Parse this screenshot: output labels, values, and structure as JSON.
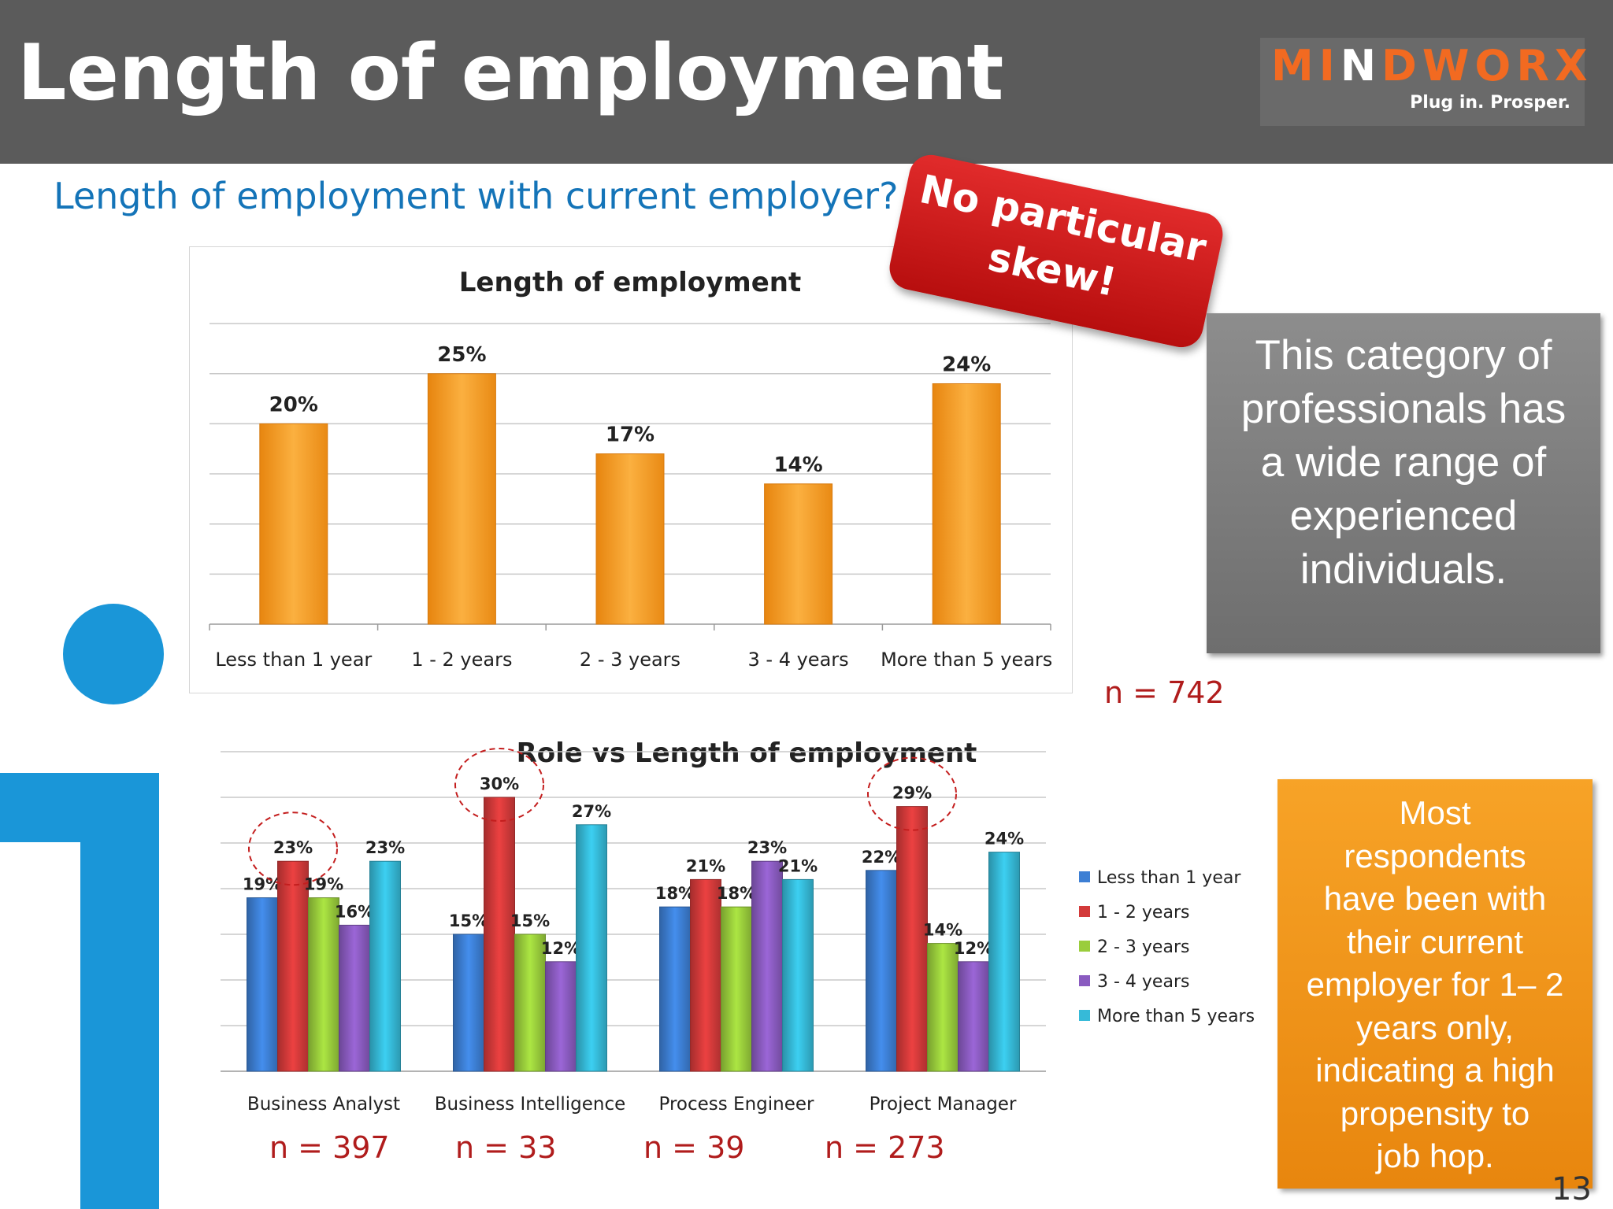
{
  "header": {
    "title": "Length of employment"
  },
  "logo": {
    "brand": "MINDWORX",
    "tagline": "Plug in. Prosper."
  },
  "question": "Length of employment with current employer?",
  "stamp": {
    "line1": "No particular",
    "line2": "skew!"
  },
  "callout_grey": {
    "lines": [
      "This category of",
      "professionals has",
      "a wide range of",
      "experienced",
      "individuals."
    ]
  },
  "callout_orange": {
    "lines": [
      "Most",
      "respondents",
      "have been with",
      "their current",
      "employer for 1– 2",
      "years only,",
      "indicating a high",
      "propensity to",
      "job hop."
    ]
  },
  "n_labels": {
    "total": "n = 742",
    "ba": "n = 397",
    "bi": "n = 33",
    "pe": "n = 39",
    "pm": "n = 273"
  },
  "slide_number": "13",
  "colors": {
    "header_bg": "#5b5b5b",
    "accent_blue": "#1a96d8",
    "bar_orange": "#f59a23",
    "n_red": "#b01c1c"
  },
  "chart_data": [
    {
      "type": "bar",
      "title": "Length of employment",
      "categories": [
        "Less than 1 year",
        "1 - 2 years",
        "2 - 3 years",
        "3 - 4 years",
        "More than 5 years"
      ],
      "values": [
        20,
        25,
        17,
        14,
        24
      ],
      "labels": [
        "20%",
        "25%",
        "17%",
        "14%",
        "24%"
      ],
      "ylim": [
        0,
        30
      ],
      "grid": true
    },
    {
      "type": "bar",
      "title": "Role vs Length of employment",
      "categories": [
        "Business Analyst",
        "Business Intelligence",
        "Process Engineer",
        "Project Manager"
      ],
      "series": [
        {
          "name": "Less than 1 year",
          "color": "#3d7fd4",
          "values": [
            19,
            15,
            18,
            22
          ]
        },
        {
          "name": "1 - 2 years",
          "color": "#d33a3a",
          "values": [
            23,
            30,
            21,
            29
          ]
        },
        {
          "name": "2 - 3 years",
          "color": "#9acd3c",
          "values": [
            19,
            15,
            18,
            14
          ]
        },
        {
          "name": "3 - 4 years",
          "color": "#8a5bc0",
          "values": [
            16,
            12,
            23,
            12
          ]
        },
        {
          "name": "More than 5 years",
          "color": "#36bad8",
          "values": [
            23,
            27,
            21,
            24
          ]
        }
      ],
      "ylim": [
        0,
        35
      ],
      "legend": "right",
      "grid": true,
      "highlighted": [
        "Business Analyst: 23%",
        "Business Intelligence: 30%",
        "Project Manager: 29%"
      ]
    }
  ]
}
